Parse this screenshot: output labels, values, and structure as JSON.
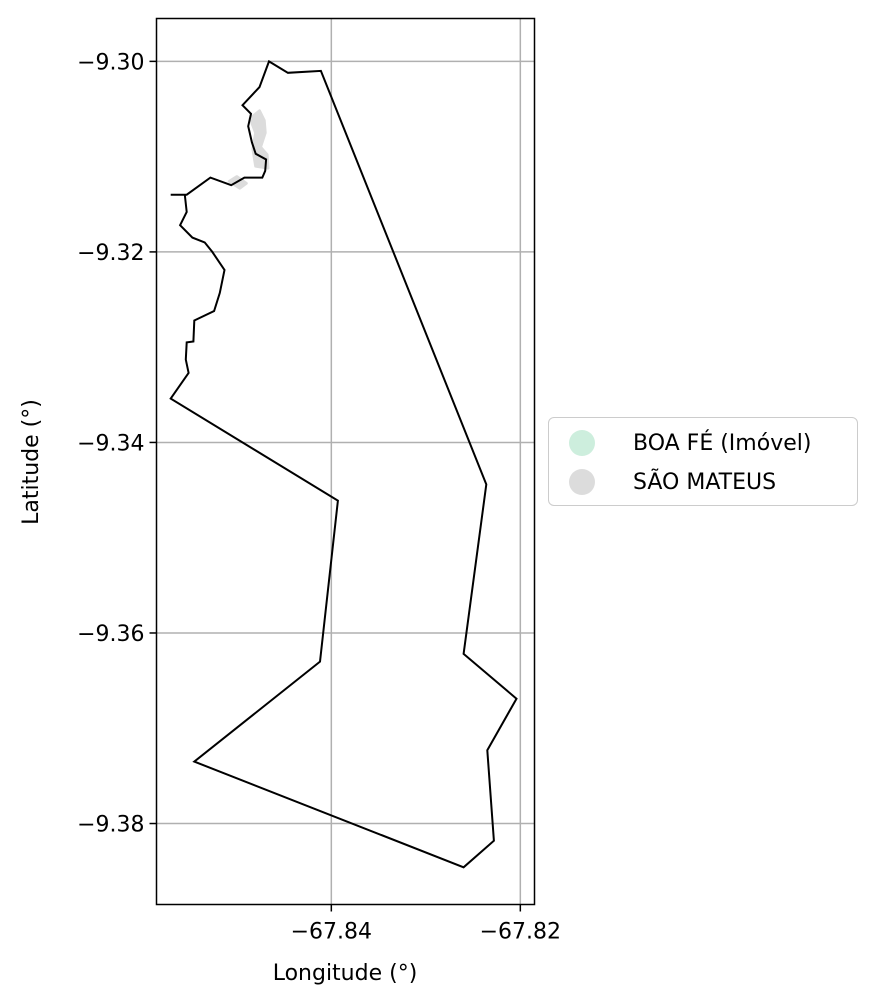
{
  "chart_data": {
    "type": "map",
    "xlabel": "Longitude (°)",
    "ylabel": "Latitude (°)",
    "xlim": [
      -67.8585,
      -67.8185
    ],
    "ylim": [
      -9.3885,
      -9.2955
    ],
    "xticks": [
      {
        "value": -67.84,
        "label": "−67.84"
      },
      {
        "value": -67.82,
        "label": "−67.82"
      }
    ],
    "yticks": [
      {
        "value": -9.3,
        "label": "−9.30"
      },
      {
        "value": -9.32,
        "label": "−9.32"
      },
      {
        "value": -9.34,
        "label": "−9.34"
      },
      {
        "value": -9.36,
        "label": "−9.36"
      },
      {
        "value": -9.38,
        "label": "−9.38"
      }
    ],
    "grid": true,
    "legend_position": "center-right outside",
    "series": [
      {
        "name": "BOA FÉ (Imóvel)",
        "color": "#cdeedd",
        "kind": "polygon-outline",
        "coords": [
          [
            -67.8466,
            -9.3
          ],
          [
            -67.8446,
            -9.3012
          ],
          [
            -67.8411,
            -9.301
          ],
          [
            -67.8236,
            -9.3444
          ],
          [
            -67.826,
            -9.3622
          ],
          [
            -67.8204,
            -9.3669
          ],
          [
            -67.8235,
            -9.3723
          ],
          [
            -67.8228,
            -9.3818
          ],
          [
            -67.826,
            -9.3846
          ],
          [
            -67.8545,
            -9.3735
          ],
          [
            -67.8412,
            -9.363
          ],
          [
            -67.8393,
            -9.3461
          ],
          [
            -67.857,
            -9.3354
          ],
          [
            -67.8551,
            -9.3327
          ],
          [
            -67.8554,
            -9.3313
          ],
          [
            -67.8553,
            -9.3295
          ],
          [
            -67.8546,
            -9.3294
          ],
          [
            -67.8545,
            -9.3272
          ],
          [
            -67.8524,
            -9.3262
          ],
          [
            -67.8518,
            -9.3243
          ],
          [
            -67.8513,
            -9.3219
          ],
          [
            -67.8526,
            -9.32
          ],
          [
            -67.8534,
            -9.319
          ],
          [
            -67.8547,
            -9.3185
          ],
          [
            -67.856,
            -9.3172
          ],
          [
            -67.8553,
            -9.3158
          ],
          [
            -67.8555,
            -9.314
          ],
          [
            -67.857,
            -9.314
          ],
          [
            -67.8553,
            -9.314
          ],
          [
            -67.8528,
            -9.3122
          ],
          [
            -67.8506,
            -9.313
          ],
          [
            -67.8492,
            -9.3122
          ],
          [
            -67.8473,
            -9.3122
          ],
          [
            -67.847,
            -9.3115
          ],
          [
            -67.8469,
            -9.3103
          ],
          [
            -67.848,
            -9.3097
          ],
          [
            -67.8484,
            -9.3085
          ],
          [
            -67.8488,
            -9.3068
          ],
          [
            -67.8485,
            -9.3055
          ],
          [
            -67.8494,
            -9.3046
          ],
          [
            -67.8476,
            -9.3027
          ],
          [
            -67.8466,
            -9.3
          ]
        ]
      },
      {
        "name": "SÃO MATEUS",
        "color": "#dcdcdc",
        "kind": "region",
        "coords": [
          [
            -67.8476,
            -9.3052
          ],
          [
            -67.8471,
            -9.3062
          ],
          [
            -67.847,
            -9.3075
          ],
          [
            -67.8475,
            -9.309
          ],
          [
            -67.8468,
            -9.3098
          ],
          [
            -67.8467,
            -9.3112
          ],
          [
            -67.848,
            -9.311
          ],
          [
            -67.8483,
            -9.3092
          ],
          [
            -67.848,
            -9.3075
          ],
          [
            -67.8486,
            -9.306
          ]
        ]
      },
      {
        "name": "SÃO MATEUS",
        "color": "#dcdcdc",
        "kind": "region",
        "coords": [
          [
            -67.8508,
            -9.3126
          ],
          [
            -67.8497,
            -9.3133
          ],
          [
            -67.849,
            -9.3128
          ],
          [
            -67.85,
            -9.3121
          ]
        ]
      }
    ]
  }
}
